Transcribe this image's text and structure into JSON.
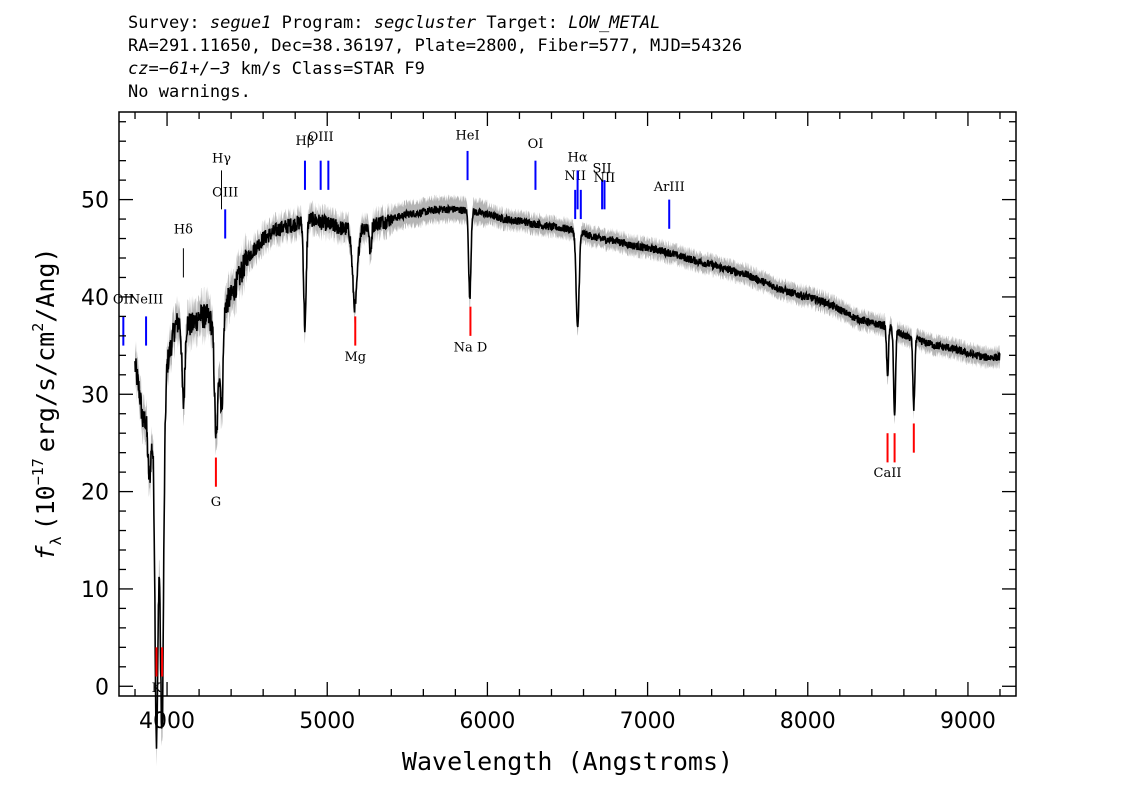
{
  "header": {
    "line1": {
      "survey_label": "Survey:",
      "survey": "segue1",
      "program_label": "Program:",
      "program": "segcluster",
      "target_label": "Target:",
      "target": "LOW_METAL"
    },
    "line2": "RA=291.11650, Dec=38.36197, Plate=2800, Fiber=577, MJD=54326",
    "line3": {
      "cz": "cz=−61+/−3",
      "rest": "km/s Class=STAR F9"
    },
    "line4": "No warnings."
  },
  "chart_data": {
    "type": "line",
    "xlabel": "Wavelength (Angstroms)",
    "ylabel": "f_λ (10^-17 erg/s/cm^2/Ang)",
    "ylabel_parts": {
      "f": "f",
      "sub": "λ",
      "pre": "(10",
      "exp": "−17",
      "mid": "erg/s/cm",
      "exp2": "2",
      "post": "/Ang)"
    },
    "xlim": [
      3700,
      9300
    ],
    "ylim": [
      -1,
      59
    ],
    "xticks": [
      4000,
      5000,
      6000,
      7000,
      8000,
      9000
    ],
    "yticks": [
      0,
      10,
      20,
      30,
      40,
      50
    ],
    "grid": false,
    "colors": {
      "spectrum": "#000000",
      "error": "#b4b4b4",
      "emission": "#0000ff",
      "absorption": "#ff0000",
      "balmer": "#000000"
    },
    "continuum": [
      [
        3800,
        33
      ],
      [
        3830,
        30
      ],
      [
        3850,
        27
      ],
      [
        3870,
        28
      ],
      [
        3900,
        27
      ],
      [
        3930,
        23
      ],
      [
        3960,
        18
      ],
      [
        4000,
        33
      ],
      [
        4050,
        37
      ],
      [
        4100,
        38
      ],
      [
        4150,
        37
      ],
      [
        4200,
        38
      ],
      [
        4250,
        38
      ],
      [
        4300,
        37
      ],
      [
        4350,
        39
      ],
      [
        4400,
        40
      ],
      [
        4450,
        42
      ],
      [
        4500,
        44
      ],
      [
        4550,
        45
      ],
      [
        4600,
        46
      ],
      [
        4650,
        46.5
      ],
      [
        4700,
        47
      ],
      [
        4800,
        47.5
      ],
      [
        4900,
        48
      ],
      [
        5000,
        47.5
      ],
      [
        5100,
        47
      ],
      [
        5200,
        47
      ],
      [
        5300,
        47.5
      ],
      [
        5400,
        48
      ],
      [
        5500,
        48.5
      ],
      [
        5600,
        48.7
      ],
      [
        5700,
        49
      ],
      [
        5800,
        49
      ],
      [
        5900,
        48.8
      ],
      [
        6000,
        48.5
      ],
      [
        6100,
        48
      ],
      [
        6200,
        47.8
      ],
      [
        6300,
        47.5
      ],
      [
        6400,
        47.2
      ],
      [
        6500,
        47
      ],
      [
        6600,
        46.5
      ],
      [
        6700,
        46
      ],
      [
        6800,
        45.8
      ],
      [
        6900,
        45.3
      ],
      [
        7000,
        45
      ],
      [
        7100,
        44.7
      ],
      [
        7200,
        44.2
      ],
      [
        7300,
        43.7
      ],
      [
        7400,
        43.3
      ],
      [
        7500,
        42.8
      ],
      [
        7600,
        42.4
      ],
      [
        7700,
        41.7
      ],
      [
        7800,
        41
      ],
      [
        7900,
        40.4
      ],
      [
        8000,
        40
      ],
      [
        8100,
        39.5
      ],
      [
        8200,
        38.7
      ],
      [
        8300,
        37.8
      ],
      [
        8400,
        37.3
      ],
      [
        8500,
        37
      ],
      [
        8600,
        36
      ],
      [
        8700,
        35.5
      ],
      [
        8800,
        35
      ],
      [
        8900,
        34.7
      ],
      [
        9000,
        34.2
      ],
      [
        9100,
        33.8
      ],
      [
        9200,
        33.8
      ]
    ],
    "absorption_features": [
      {
        "center": 3934,
        "depth": 28,
        "width": 9
      },
      {
        "center": 3969,
        "depth": 26,
        "width": 9
      },
      {
        "center": 3889,
        "depth": 6,
        "width": 10
      },
      {
        "center": 4102,
        "depth": 9,
        "width": 9
      },
      {
        "center": 4308,
        "depth": 12,
        "width": 11
      },
      {
        "center": 4341,
        "depth": 10,
        "width": 9
      },
      {
        "center": 4861,
        "depth": 11,
        "width": 8
      },
      {
        "center": 5173,
        "depth": 8,
        "width": 15
      },
      {
        "center": 5890,
        "depth": 9,
        "width": 7
      },
      {
        "center": 5270,
        "depth": 3,
        "width": 6
      },
      {
        "center": 6563,
        "depth": 10,
        "width": 9
      },
      {
        "center": 8498,
        "depth": 5,
        "width": 6
      },
      {
        "center": 8542,
        "depth": 9,
        "width": 6
      },
      {
        "center": 8662,
        "depth": 7,
        "width": 6
      }
    ],
    "line_markers": [
      {
        "label": "OII",
        "x": 3727,
        "ymin": 35,
        "ymax": 38,
        "color": "emission",
        "label_y": 39.3
      },
      {
        "label": "NeIII",
        "x": 3869,
        "ymin": 35,
        "ymax": 38,
        "color": "emission",
        "label_y": 39.3
      },
      {
        "label": "Hδ",
        "x": 4102,
        "ymin": 42,
        "ymax": 45,
        "color": "balmer",
        "label_y": 46.5
      },
      {
        "label": "Hγ",
        "x": 4340,
        "ymin": 49,
        "ymax": 53,
        "color": "balmer",
        "label_y": 53.8
      },
      {
        "label": "OIII",
        "x": 4363,
        "ymin": 46,
        "ymax": 49,
        "color": "emission",
        "label_y": 50.3
      },
      {
        "label": "Hβ",
        "x": 4861,
        "ymin": 51,
        "ymax": 54,
        "color": "emission",
        "label_y": 55.6
      },
      {
        "label": "OIII",
        "x": 4959,
        "ymin": 51,
        "ymax": 54,
        "color": "emission",
        "label_y": 56.0
      },
      {
        "label": "OIII",
        "x": 5007,
        "ymin": 51,
        "ymax": 54,
        "color": "emission",
        "label_y": null
      },
      {
        "label": "HeI",
        "x": 5876,
        "ymin": 52,
        "ymax": 55,
        "color": "emission",
        "label_y": 56.2
      },
      {
        "label": "OI",
        "x": 6300,
        "ymin": 51,
        "ymax": 54,
        "color": "emission",
        "label_y": 55.3
      },
      {
        "label": "NII",
        "x": 6548,
        "ymin": 48,
        "ymax": 51,
        "color": "emission",
        "label_y": 52.0
      },
      {
        "label": "Hα",
        "x": 6563,
        "ymin": 49,
        "ymax": 53,
        "color": "emission",
        "label_y": 53.9
      },
      {
        "label": "NII",
        "x": 6583,
        "ymin": 48,
        "ymax": 51,
        "color": "emission",
        "label_y": null
      },
      {
        "label": "SII",
        "x": 6716,
        "ymin": 49,
        "ymax": 52,
        "color": "emission",
        "label_y": 52.8
      },
      {
        "label": "NII",
        "x": 6731,
        "ymin": 49,
        "ymax": 52,
        "color": "emission",
        "label_y": 51.8
      },
      {
        "label": "ArIII",
        "x": 7135,
        "ymin": 47,
        "ymax": 50,
        "color": "emission",
        "label_y": 50.9
      },
      {
        "label": "Mg",
        "x": 5175,
        "ymin": 35,
        "ymax": 38,
        "color": "absorption",
        "label_y": 33.4
      },
      {
        "label": "Na D",
        "x": 5894,
        "ymin": 36,
        "ymax": 39,
        "color": "absorption",
        "label_y": 34.4
      },
      {
        "label": "G",
        "x": 4305,
        "ymin": 20.5,
        "ymax": 23.5,
        "color": "absorption",
        "label_y": 18.5
      },
      {
        "label": "CaII",
        "x": 8498,
        "ymin": 23,
        "ymax": 26,
        "color": "absorption",
        "label_y": 21.5
      },
      {
        "label": "CaII",
        "x": 8542,
        "ymin": 23,
        "ymax": 26,
        "color": "absorption",
        "label_y": null
      },
      {
        "label": "CaII",
        "x": 8662,
        "ymin": 24,
        "ymax": 27,
        "color": "absorption",
        "label_y": null
      },
      {
        "label": "K",
        "x": 3934,
        "ymin": 1,
        "ymax": 4,
        "color": "absorption",
        "label_y": -0.6
      },
      {
        "label": "H",
        "x": 3969,
        "ymin": 1,
        "ymax": 4,
        "color": "absorption",
        "label_y": null
      }
    ]
  }
}
